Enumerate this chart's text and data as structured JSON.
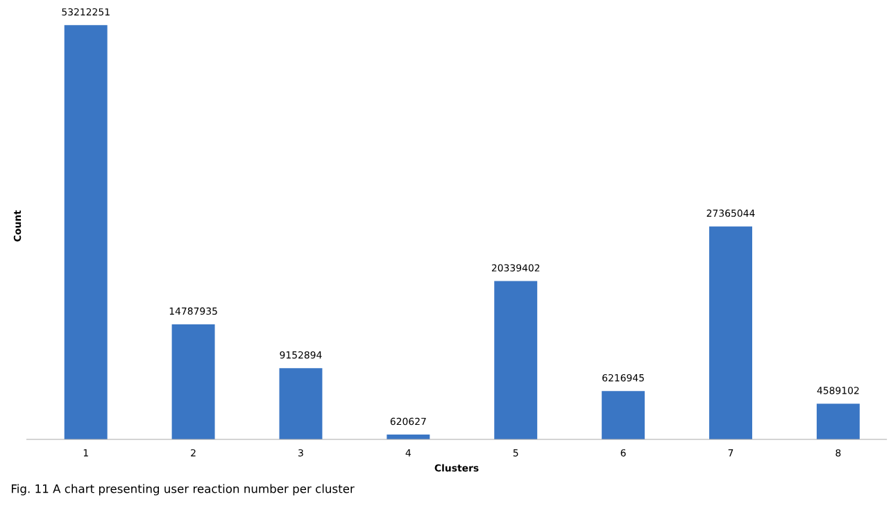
{
  "chart_data": {
    "type": "bar",
    "xlabel": "Clusters",
    "ylabel": "Count",
    "categories": [
      "1",
      "2",
      "3",
      "4",
      "5",
      "6",
      "7",
      "8"
    ],
    "values": [
      53212251,
      14787935,
      9152894,
      620627,
      20339402,
      6216945,
      27365044,
      4589102
    ],
    "color": "#3a76c4",
    "data_labels": true,
    "grid": false,
    "legend": false,
    "annotations": [
      "Fig. 11 A chart presenting user reaction number per cluster"
    ]
  }
}
